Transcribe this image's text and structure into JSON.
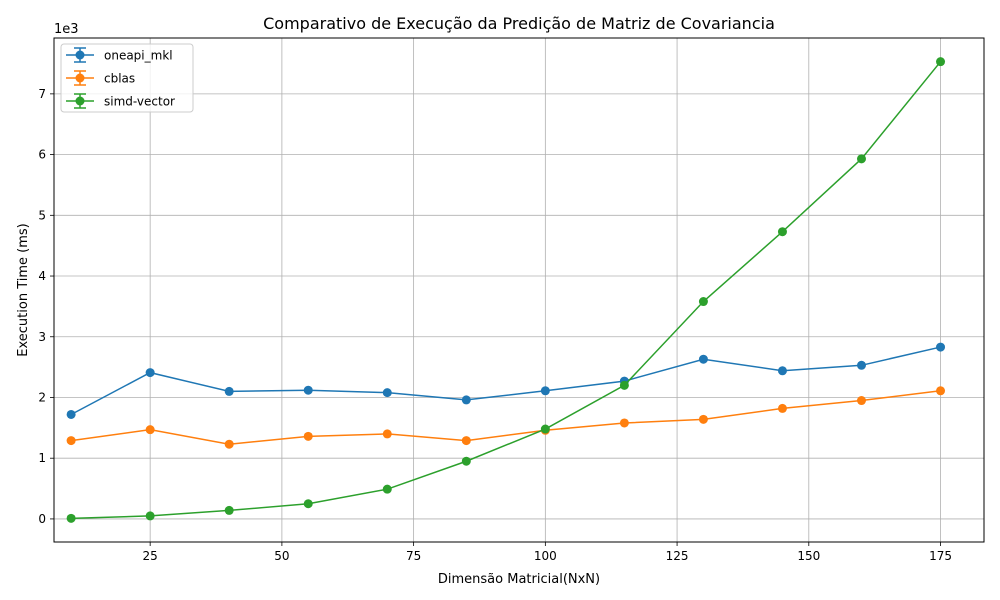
{
  "chart_data": {
    "type": "line",
    "title": "Comparativo de Execução da Predição de Matriz de Covariancia",
    "xlabel": "Dimensão Matricial(NxN)",
    "ylabel": "Execution Time (ms)",
    "y_scale_label": "1e3",
    "x": [
      10,
      25,
      40,
      55,
      70,
      85,
      100,
      115,
      130,
      145,
      160,
      175
    ],
    "xlim": [
      6.75,
      183.25
    ],
    "ylim": [
      -0.38,
      7.92
    ],
    "x_ticks": [
      25,
      50,
      75,
      100,
      125,
      150,
      175
    ],
    "x_tick_labels": [
      "25",
      "50",
      "75",
      "100",
      "125",
      "150",
      "175"
    ],
    "y_ticks": [
      0,
      1,
      2,
      3,
      4,
      5,
      6,
      7
    ],
    "y_tick_labels": [
      "0",
      "1",
      "2",
      "3",
      "4",
      "5",
      "6",
      "7"
    ],
    "grid": true,
    "legend_position": "top-left",
    "error_bars": true,
    "series": [
      {
        "name": "oneapi_mkl",
        "color": "#1f77b4",
        "values": [
          1.72,
          2.41,
          2.1,
          2.12,
          2.08,
          1.96,
          2.11,
          2.27,
          2.63,
          2.44,
          2.53,
          2.83
        ]
      },
      {
        "name": "cblas",
        "color": "#ff7f0e",
        "values": [
          1.29,
          1.47,
          1.23,
          1.36,
          1.4,
          1.29,
          1.46,
          1.58,
          1.64,
          1.82,
          1.95,
          2.11
        ]
      },
      {
        "name": "simd-vector",
        "color": "#2ca02c",
        "values": [
          0.01,
          0.05,
          0.14,
          0.25,
          0.49,
          0.95,
          1.48,
          2.2,
          3.58,
          4.73,
          5.93,
          7.53
        ]
      }
    ]
  }
}
